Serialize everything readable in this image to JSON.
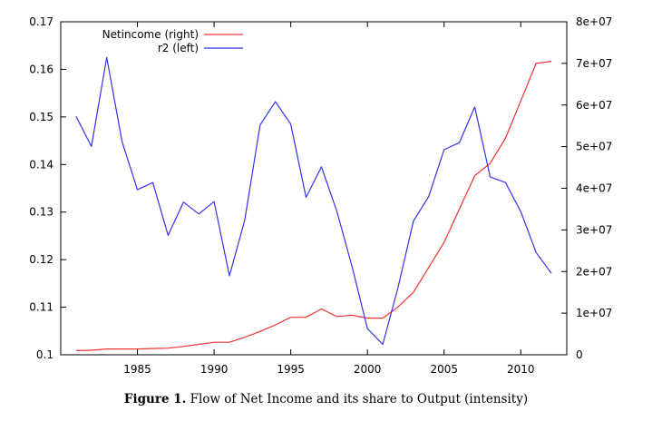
{
  "caption": {
    "label": "Figure 1.",
    "text": "Flow of Net Income and its share to Output (intensity)"
  },
  "colors": {
    "netincome": "#ee3333",
    "r2": "#3333ee",
    "axis": "#000000"
  },
  "chart_data": {
    "type": "line",
    "title": "",
    "x_ticks": [
      1985,
      1990,
      1995,
      2000,
      2005,
      2010
    ],
    "x_range": [
      1980,
      2013
    ],
    "y_left": {
      "range": [
        0.1,
        0.17
      ],
      "ticks": [
        0.1,
        0.11,
        0.12,
        0.13,
        0.14,
        0.15,
        0.16,
        0.17
      ],
      "tick_labels": [
        "0.1",
        "0.11",
        "0.12",
        "0.13",
        "0.14",
        "0.15",
        "0.16",
        "0.17"
      ]
    },
    "y_right": {
      "range": [
        0,
        80000000
      ],
      "ticks": [
        0,
        10000000,
        20000000,
        30000000,
        40000000,
        50000000,
        60000000,
        70000000,
        80000000
      ],
      "tick_labels": [
        "0",
        "1e+07",
        "2e+07",
        "3e+07",
        "4e+07",
        "5e+07",
        "6e+07",
        "7e+07",
        "8e+07"
      ]
    },
    "legend_position": "top-left",
    "series": [
      {
        "name": "Netincome (right)",
        "axis": "right",
        "color": "#ee3333",
        "x": [
          1981,
          1982,
          1983,
          1984,
          1985,
          1986,
          1987,
          1988,
          1989,
          1990,
          1991,
          1992,
          1993,
          1994,
          1995,
          1996,
          1997,
          1998,
          1999,
          2000,
          2001,
          2002,
          2003,
          2004,
          2005,
          2006,
          2007,
          2008,
          2009,
          2010,
          2011,
          2012
        ],
        "y": [
          1000000,
          1100000,
          1400000,
          1400000,
          1400000,
          1500000,
          1600000,
          2000000,
          2500000,
          3000000,
          3000000,
          4200000,
          5600000,
          7200000,
          9000000,
          9000000,
          11000000,
          9200000,
          9500000,
          8800000,
          8800000,
          11500000,
          15000000,
          21000000,
          27000000,
          35000000,
          43000000,
          46000000,
          52000000,
          61000000,
          70000000,
          70500000
        ]
      },
      {
        "name": "r2 (left)",
        "axis": "left",
        "color": "#3333ee",
        "x": [
          1981,
          1982,
          1983,
          1984,
          1985,
          1986,
          1987,
          1988,
          1989,
          1990,
          1991,
          1992,
          1993,
          1994,
          1995,
          1996,
          1997,
          1998,
          1999,
          2000,
          2001,
          2002,
          2003,
          2004,
          2005,
          2006,
          2007,
          2008,
          2009,
          2010,
          2011,
          2012
        ],
        "y": [
          0.1501,
          0.1438,
          0.1625,
          0.1448,
          0.1347,
          0.1362,
          0.1251,
          0.1321,
          0.1296,
          0.1322,
          0.1166,
          0.1283,
          0.1483,
          0.1532,
          0.1485,
          0.1331,
          0.1395,
          0.1302,
          0.1185,
          0.1055,
          0.1022,
          0.1142,
          0.1281,
          0.1333,
          0.1431,
          0.1446,
          0.1521,
          0.1374,
          0.1362,
          0.1301,
          0.1215,
          0.1171
        ]
      }
    ]
  }
}
